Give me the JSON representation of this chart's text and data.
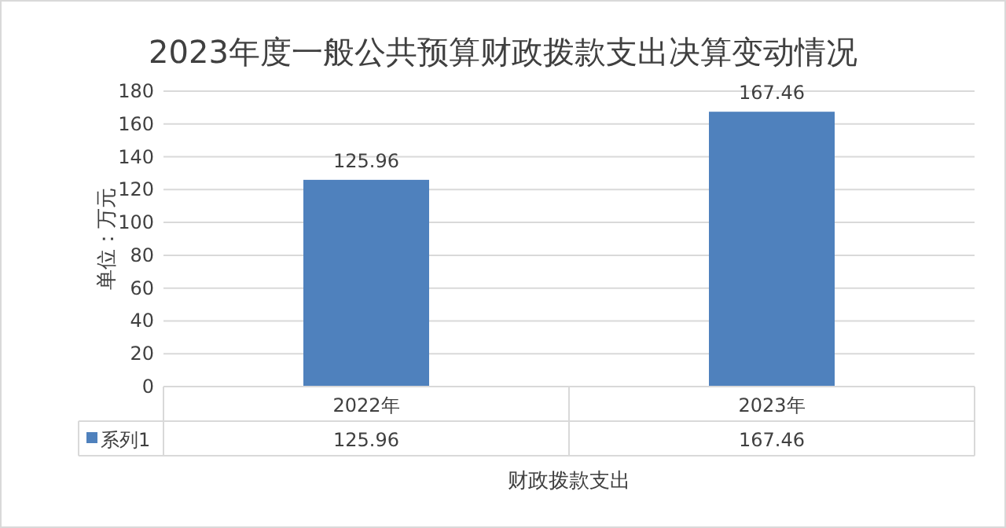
{
  "chart_data": {
    "type": "bar",
    "title": "2023年度一般公共预算财政拨款支出决算变动情况",
    "ylabel": "单位：万元",
    "xlabel": "财政拨款支出",
    "categories": [
      "2022年",
      "2023年"
    ],
    "series": [
      {
        "name": "系列1",
        "color": "#4f81bd",
        "values": [
          125.96,
          167.46
        ]
      }
    ],
    "annotations": [
      "125.96",
      "167.46"
    ],
    "ylim": [
      0,
      180
    ],
    "yticks": [
      0,
      20,
      40,
      60,
      80,
      100,
      120,
      140,
      160,
      180
    ],
    "grid": "y",
    "data_labels": true,
    "legend": "bottom"
  }
}
